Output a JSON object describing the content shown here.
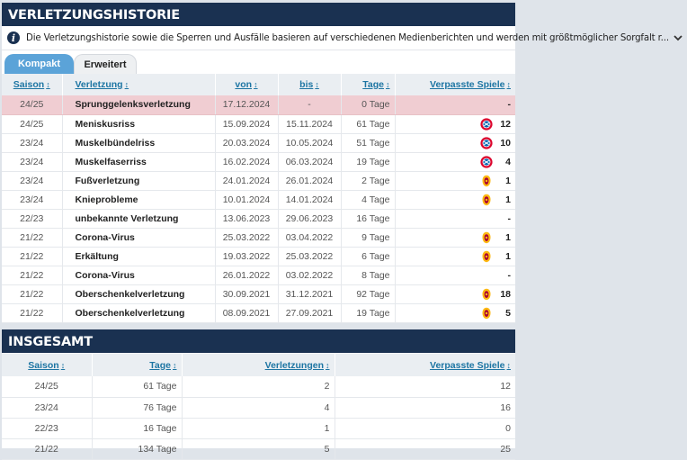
{
  "history": {
    "title": "VERLETZUNGSHISTORIE",
    "info_text": "Die Verletzungshistorie sowie die Sperren und Ausfälle basieren auf verschiedenen Medienberichten und werden mit größtmöglicher Sorgfalt r...",
    "tabs": [
      {
        "label": "Kompakt"
      },
      {
        "label": "Erweitert"
      }
    ],
    "columns": {
      "season": "Saison",
      "injury": "Verletzung",
      "from": "von",
      "until": "bis",
      "days": "Tage",
      "missed": "Verpasste Spiele"
    },
    "sort_icon": "↕",
    "rows": [
      {
        "season": "24/25",
        "injury": "Sprunggelenksverletzung",
        "from": "17.12.2024",
        "until": "-",
        "days": "0 Tage",
        "missed": "-",
        "club": "",
        "highlight": true
      },
      {
        "season": "24/25",
        "injury": "Meniskusriss",
        "from": "15.09.2024",
        "until": "15.11.2024",
        "days": "61 Tage",
        "missed": "12",
        "club": "bayern"
      },
      {
        "season": "23/24",
        "injury": "Muskelbündelriss",
        "from": "20.03.2024",
        "until": "10.05.2024",
        "days": "51 Tage",
        "missed": "10",
        "club": "bayern"
      },
      {
        "season": "23/24",
        "injury": "Muskelfaserriss",
        "from": "16.02.2024",
        "until": "06.03.2024",
        "days": "19 Tage",
        "missed": "4",
        "club": "bayern"
      },
      {
        "season": "23/24",
        "injury": "Fußverletzung",
        "from": "24.01.2024",
        "until": "26.01.2024",
        "days": "2 Tage",
        "missed": "1",
        "club": "galatasaray"
      },
      {
        "season": "23/24",
        "injury": "Knieprobleme",
        "from": "10.01.2024",
        "until": "14.01.2024",
        "days": "4 Tage",
        "missed": "1",
        "club": "galatasaray"
      },
      {
        "season": "22/23",
        "injury": "unbekannte Verletzung",
        "from": "13.06.2023",
        "until": "29.06.2023",
        "days": "16 Tage",
        "missed": "-",
        "club": ""
      },
      {
        "season": "21/22",
        "injury": "Corona-Virus",
        "from": "25.03.2022",
        "until": "03.04.2022",
        "days": "9 Tage",
        "missed": "1",
        "club": "galatasaray"
      },
      {
        "season": "21/22",
        "injury": "Erkältung",
        "from": "19.03.2022",
        "until": "25.03.2022",
        "days": "6 Tage",
        "missed": "1",
        "club": "galatasaray"
      },
      {
        "season": "21/22",
        "injury": "Corona-Virus",
        "from": "26.01.2022",
        "until": "03.02.2022",
        "days": "8 Tage",
        "missed": "-",
        "club": ""
      },
      {
        "season": "21/22",
        "injury": "Oberschenkelverletzung",
        "from": "30.09.2021",
        "until": "31.12.2021",
        "days": "92 Tage",
        "missed": "18",
        "club": "galatasaray"
      },
      {
        "season": "21/22",
        "injury": "Oberschenkelverletzung",
        "from": "08.09.2021",
        "until": "27.09.2021",
        "days": "19 Tage",
        "missed": "5",
        "club": "galatasaray"
      }
    ]
  },
  "summary": {
    "title": "INSGESAMT",
    "columns": {
      "season": "Saison",
      "days": "Tage",
      "injuries": "Verletzungen",
      "missed": "Verpasste Spiele"
    },
    "rows": [
      {
        "season": "24/25",
        "days": "61 Tage",
        "injuries": "2",
        "missed": "12"
      },
      {
        "season": "23/24",
        "days": "76 Tage",
        "injuries": "4",
        "missed": "16"
      },
      {
        "season": "22/23",
        "days": "16 Tage",
        "injuries": "1",
        "missed": "0"
      },
      {
        "season": "21/22",
        "days": "134 Tage",
        "injuries": "5",
        "missed": "25"
      }
    ]
  },
  "colors": {
    "header_bg": "#1a3151",
    "link": "#1d75a3",
    "highlight_row": "#f0cdd2",
    "tab_active": "#5ba3d8",
    "bayern_red": "#dc052d",
    "galatasaray_yellow": "#fdb912",
    "galatasaray_red": "#a90432"
  },
  "icons": {
    "info": "info-icon",
    "expand": "chevron-down-icon",
    "bayern": "bayern-crest-icon",
    "galatasaray": "galatasaray-crest-icon"
  }
}
